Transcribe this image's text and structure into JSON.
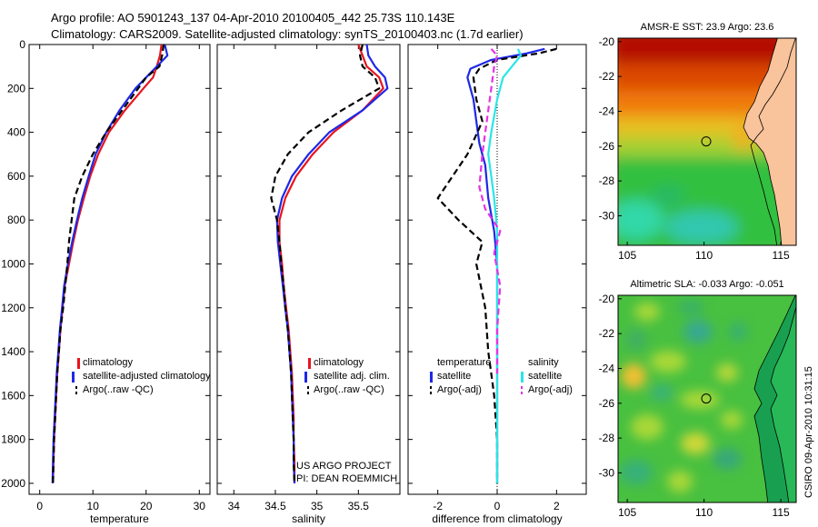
{
  "figure": {
    "title_line1": "Argo profile: AO 5901243_137 04-Apr-2010 20100405_442 25.73S 110.143E",
    "title_line2": "Climatology: CARS2009. Satellite-adjusted climatology: synTS_20100403.nc (1.7d earlier)",
    "footer_vertical": "CSIRO 09-Apr-2010 10:31:15"
  },
  "colors": {
    "climatology": "#e8141e",
    "satellite": "#1e28e6",
    "argo": "#000000",
    "salinity_satellite": "#28e6e6",
    "salinity_argo": "#e632e6",
    "land": "#f9c39b"
  },
  "chart_data": [
    {
      "type": "line",
      "id": "temperature",
      "xlabel": "temperature",
      "xlim": [
        -2,
        32
      ],
      "ylim": [
        0,
        2050
      ],
      "y_reversed": true,
      "xticks": [
        0,
        10,
        20,
        30
      ],
      "yticks": [
        0,
        200,
        400,
        600,
        800,
        1000,
        1200,
        1400,
        1600,
        1800,
        2000
      ],
      "legend": [
        "climatology",
        "satellite-adjusted climatology",
        "Argo(..raw -QC)"
      ],
      "series": [
        {
          "name": "climatology",
          "style": "solid",
          "color": "#e8141e",
          "x": [
            22.9,
            22.6,
            22.0,
            21.3,
            19.5,
            16.0,
            13.0,
            11.0,
            9.5,
            8.3,
            7.2,
            6.3,
            5.5,
            4.7,
            4.3,
            3.9,
            3.6,
            3.3,
            3.1,
            2.9,
            2.7,
            2.6,
            2.5
          ],
          "y": [
            0,
            50,
            100,
            150,
            200,
            300,
            400,
            500,
            600,
            700,
            800,
            900,
            1000,
            1100,
            1200,
            1300,
            1400,
            1500,
            1600,
            1700,
            1800,
            1900,
            2000
          ]
        },
        {
          "name": "satellite-adjusted climatology",
          "style": "solid",
          "color": "#1e28e6",
          "x": [
            23.5,
            24.0,
            22.0,
            20.0,
            18.0,
            15.0,
            12.5,
            10.5,
            9.2,
            8.0,
            7.0,
            6.1,
            5.3,
            4.6,
            4.2,
            3.8,
            3.5,
            3.2,
            3.0,
            2.8,
            2.6,
            2.5,
            2.4
          ],
          "y": [
            0,
            50,
            100,
            150,
            200,
            300,
            400,
            500,
            600,
            700,
            800,
            900,
            1000,
            1100,
            1200,
            1300,
            1400,
            1500,
            1600,
            1700,
            1800,
            1900,
            2000
          ]
        },
        {
          "name": "Argo(..raw -QC)",
          "style": "dashed",
          "color": "#000000",
          "x": [
            23.3,
            23.0,
            22.5,
            20.0,
            18.5,
            15.5,
            12.5,
            10.0,
            8.0,
            6.5,
            6.0,
            5.5,
            5.2,
            4.8,
            4.4,
            3.9,
            3.6,
            3.3,
            3.1,
            2.9,
            2.7,
            2.6,
            2.5
          ],
          "y": [
            0,
            50,
            100,
            150,
            200,
            300,
            400,
            500,
            600,
            700,
            800,
            900,
            1000,
            1100,
            1200,
            1300,
            1400,
            1500,
            1600,
            1700,
            1800,
            1900,
            2000
          ]
        }
      ]
    },
    {
      "type": "line",
      "id": "salinity",
      "xlabel": "salinity",
      "xlim": [
        33.8,
        36.0
      ],
      "ylim": [
        0,
        2050
      ],
      "y_reversed": true,
      "xticks": [
        34,
        34.5,
        35,
        35.5
      ],
      "legend": [
        "climatology",
        "satellite adj. clim.",
        "Argo(..raw -QC)"
      ],
      "annotations": [
        "US ARGO PROJECT",
        "PI: DEAN ROEMMICH"
      ],
      "series": [
        {
          "name": "climatology",
          "style": "solid",
          "color": "#e8141e",
          "x": [
            35.5,
            35.55,
            35.6,
            35.75,
            35.8,
            35.55,
            35.2,
            34.95,
            34.75,
            34.62,
            34.55,
            34.55,
            34.58,
            34.6,
            34.63,
            34.66,
            34.68,
            34.7,
            34.71,
            34.72,
            34.72,
            34.73,
            34.73
          ],
          "y": [
            0,
            50,
            100,
            150,
            200,
            300,
            400,
            500,
            600,
            700,
            800,
            900,
            1000,
            1100,
            1200,
            1300,
            1400,
            1500,
            1600,
            1700,
            1800,
            1900,
            2000
          ]
        },
        {
          "name": "satellite adj. clim.",
          "style": "solid",
          "color": "#1e28e6",
          "x": [
            35.6,
            35.62,
            35.7,
            35.82,
            35.85,
            35.55,
            35.15,
            34.9,
            34.7,
            34.58,
            34.52,
            34.53,
            34.56,
            34.59,
            34.62,
            34.65,
            34.67,
            34.69,
            34.7,
            34.71,
            34.72,
            34.72,
            34.73
          ],
          "y": [
            0,
            50,
            100,
            150,
            200,
            300,
            400,
            500,
            600,
            700,
            800,
            900,
            1000,
            1100,
            1200,
            1300,
            1400,
            1500,
            1600,
            1700,
            1800,
            1900,
            2000
          ]
        },
        {
          "name": "Argo(..raw -QC)",
          "style": "dashed",
          "color": "#000000",
          "x": [
            35.55,
            35.52,
            35.55,
            35.7,
            35.75,
            35.3,
            34.9,
            34.65,
            34.5,
            34.45,
            34.52,
            34.55,
            34.57,
            34.6,
            34.62,
            34.65,
            34.67,
            34.69,
            34.7,
            34.71,
            34.72,
            34.72,
            34.73
          ],
          "y": [
            0,
            50,
            100,
            150,
            200,
            300,
            400,
            500,
            600,
            700,
            800,
            900,
            1000,
            1100,
            1200,
            1300,
            1400,
            1500,
            1600,
            1700,
            1800,
            1900,
            2000
          ]
        }
      ]
    },
    {
      "type": "line",
      "id": "difference",
      "xlabel": "difference from climatology",
      "xlim": [
        -3,
        3
      ],
      "ylim": [
        0,
        2050
      ],
      "y_reversed": true,
      "xticks": [
        -2,
        0,
        2
      ],
      "zero_line": "dotted",
      "legend_groups": [
        {
          "title": "temperature",
          "entries": [
            "satellite",
            "Argo(-adj)"
          ]
        },
        {
          "title": "salinity",
          "entries": [
            "satellite",
            "Argo(-adj)"
          ]
        }
      ],
      "series": [
        {
          "name": "temperature satellite",
          "style": "solid",
          "color": "#1e28e6",
          "x": [
            1.6,
            1.0,
            -0.2,
            -0.9,
            -1.0,
            -0.8,
            -0.7,
            -0.6,
            -0.4,
            -0.3,
            -0.1,
            0.0,
            0.0,
            0.0,
            0.0,
            0.0,
            0.0,
            0.0,
            0.0
          ],
          "y": [
            20,
            40,
            70,
            110,
            150,
            250,
            350,
            450,
            550,
            700,
            850,
            1000,
            1200,
            1400,
            1500,
            1600,
            1700,
            1800,
            2000
          ]
        },
        {
          "name": "temperature Argo(-adj)",
          "style": "dashed",
          "color": "#000000",
          "x": [
            2.0,
            1.4,
            0.0,
            -0.6,
            -0.8,
            -0.7,
            -0.5,
            -1.0,
            -2.0,
            -1.3,
            -0.5,
            -0.7,
            -0.4,
            -0.3,
            -0.2,
            -0.1,
            0.0,
            0.0
          ],
          "y": [
            20,
            40,
            70,
            110,
            150,
            250,
            350,
            500,
            700,
            800,
            900,
            1000,
            1200,
            1400,
            1500,
            1600,
            1800,
            2000
          ]
        },
        {
          "name": "salinity satellite",
          "style": "solid",
          "color": "#28e6e6",
          "x": [
            0.7,
            0.8,
            0.5,
            0.2,
            0.0,
            -0.2,
            -0.3,
            -0.2,
            -0.1,
            0.0,
            0.0,
            0.0,
            0.0,
            0.0
          ],
          "y": [
            20,
            50,
            100,
            150,
            250,
            400,
            500,
            600,
            700,
            850,
            1000,
            1400,
            1700,
            2000
          ]
        },
        {
          "name": "salinity Argo(-adj)",
          "style": "dashed",
          "color": "#e632e6",
          "x": [
            -0.2,
            0.0,
            -0.1,
            -0.2,
            -0.3,
            -0.4,
            -0.5,
            -0.6,
            -0.4,
            0.1,
            -0.1,
            0.1,
            0.0,
            0.0
          ],
          "y": [
            20,
            50,
            100,
            200,
            300,
            400,
            500,
            650,
            750,
            850,
            950,
            1100,
            1300,
            1500
          ]
        }
      ]
    },
    {
      "type": "heatmap",
      "id": "sst_map",
      "title": "AMSR-E SST: 23.9  Argo: 23.6",
      "xlim": [
        104.4,
        116.0
      ],
      "ylim": [
        -31.7,
        -19.8
      ],
      "xticks": [
        105,
        110,
        115
      ],
      "yticks": [
        -20,
        -22,
        -24,
        -26,
        -28,
        -30
      ],
      "marker": {
        "lon": 110.143,
        "lat": -25.73,
        "shape": "circle"
      }
    },
    {
      "type": "heatmap",
      "id": "sla_map",
      "title": "Altimetric SLA: -0.033  Argo: -0.051",
      "xlim": [
        104.4,
        116.0
      ],
      "ylim": [
        -31.7,
        -19.8
      ],
      "xticks": [
        105,
        110,
        115
      ],
      "yticks": [
        -20,
        -22,
        -24,
        -26,
        -28,
        -30
      ],
      "marker": {
        "lon": 110.143,
        "lat": -25.73,
        "shape": "circle"
      }
    }
  ]
}
